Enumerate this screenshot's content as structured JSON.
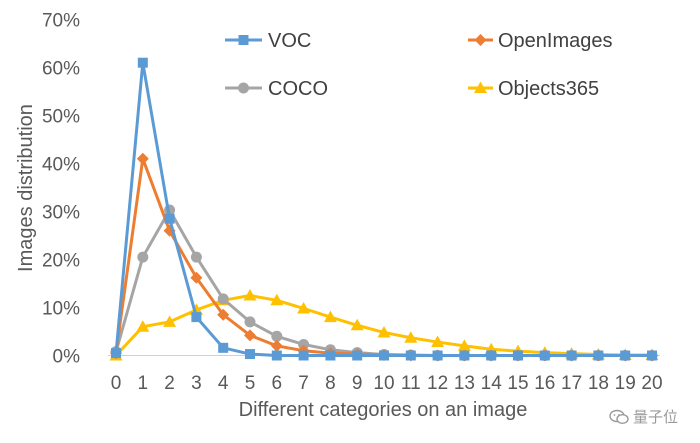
{
  "chart_data": {
    "type": "line",
    "title": "",
    "xlabel": "Different categories on an image",
    "ylabel": "Images distribution",
    "x": [
      0,
      1,
      2,
      3,
      4,
      5,
      6,
      7,
      8,
      9,
      10,
      11,
      12,
      13,
      14,
      15,
      16,
      17,
      18,
      19,
      20
    ],
    "x_tick_labels": [
      "0",
      "1",
      "2",
      "3",
      "4",
      "5",
      "6",
      "7",
      "8",
      "9",
      "10",
      "11",
      "12",
      "13",
      "14",
      "15",
      "16",
      "17",
      "18",
      "19",
      "20"
    ],
    "y_tick_labels": [
      "0%",
      "10%",
      "20%",
      "30%",
      "40%",
      "50%",
      "60%",
      "70%"
    ],
    "ylim": [
      0,
      70
    ],
    "grid": false,
    "series": [
      {
        "name": "VOC",
        "color": "#5B9BD5",
        "marker": "square",
        "values": [
          0.5,
          61,
          28.5,
          8,
          1.6,
          0.3,
          0,
          0,
          0,
          0,
          0,
          0,
          0,
          0,
          0,
          0,
          0,
          0,
          0,
          0,
          0
        ]
      },
      {
        "name": "OpenImages",
        "color": "#ED7D31",
        "marker": "diamond",
        "values": [
          0.5,
          41,
          26,
          16.2,
          8.5,
          4.2,
          2,
          1,
          0.5,
          0.3,
          0.1,
          0,
          0,
          0,
          0,
          0,
          0,
          0,
          0,
          0,
          0
        ]
      },
      {
        "name": "COCO",
        "color": "#A5A5A5",
        "marker": "circle",
        "values": [
          0.8,
          20.5,
          30.3,
          20.5,
          11.8,
          7,
          4,
          2.3,
          1.2,
          0.6,
          0.2,
          0.1,
          0,
          0,
          0,
          0,
          0,
          0,
          0,
          0,
          0
        ]
      },
      {
        "name": "Objects365",
        "color": "#FFC000",
        "marker": "triangle",
        "values": [
          0,
          6,
          7,
          9.5,
          11.5,
          12.5,
          11.5,
          9.8,
          8,
          6.3,
          4.8,
          3.7,
          2.8,
          2,
          1.3,
          0.9,
          0.6,
          0.4,
          0.2,
          0.1,
          0.1
        ]
      }
    ],
    "legend_position": "top-right"
  },
  "watermark": {
    "text": "量子位",
    "icon": "wechat-icon"
  }
}
